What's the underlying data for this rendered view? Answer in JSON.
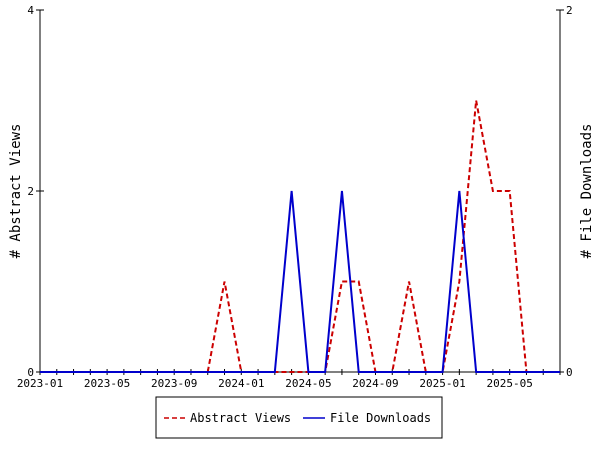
{
  "chart_data": {
    "type": "line",
    "title": "",
    "x": [
      "2023-01",
      "2023-02",
      "2023-03",
      "2023-04",
      "2023-05",
      "2023-06",
      "2023-07",
      "2023-08",
      "2023-09",
      "2023-10",
      "2023-11",
      "2023-12",
      "2024-01",
      "2024-02",
      "2024-03",
      "2024-04",
      "2024-05",
      "2024-06",
      "2024-07",
      "2024-08",
      "2024-09",
      "2024-10",
      "2024-11",
      "2024-12",
      "2025-01",
      "2025-02",
      "2025-03",
      "2025-04",
      "2025-05",
      "2025-06",
      "2025-07",
      "2025-08"
    ],
    "x_tick_labels": [
      "2023-01",
      "2023-05",
      "2023-09",
      "2024-01",
      "2024-05",
      "2024-09",
      "2025-01",
      "2025-05"
    ],
    "ylabel_left": "# Abstract Views",
    "ylabel_right": "# File Downloads",
    "ylim_left": [
      0,
      4
    ],
    "ylim_right": [
      0,
      2
    ],
    "y_tick_labels_left": [
      "0",
      "2",
      "4"
    ],
    "y_tick_labels_right": [
      "0",
      "2"
    ],
    "grid": false,
    "legend_position": "bottom-center",
    "series": [
      {
        "name": "Abstract Views",
        "axis": "left",
        "color": "#cc0000",
        "dash": "dashed",
        "values": [
          0,
          0,
          0,
          0,
          0,
          0,
          0,
          0,
          0,
          0,
          0,
          1,
          0,
          0,
          0,
          0,
          0,
          0,
          1,
          1,
          0,
          0,
          1,
          0,
          0,
          1,
          3,
          2,
          2,
          0,
          0,
          0
        ]
      },
      {
        "name": "File Downloads",
        "axis": "right",
        "color": "#0000cc",
        "dash": "solid",
        "values": [
          0,
          0,
          0,
          0,
          0,
          0,
          0,
          0,
          0,
          0,
          0,
          0,
          0,
          0,
          0,
          1,
          0,
          0,
          1,
          0,
          0,
          0,
          0,
          0,
          0,
          1,
          0,
          0,
          0,
          0,
          0,
          0
        ]
      }
    ]
  }
}
